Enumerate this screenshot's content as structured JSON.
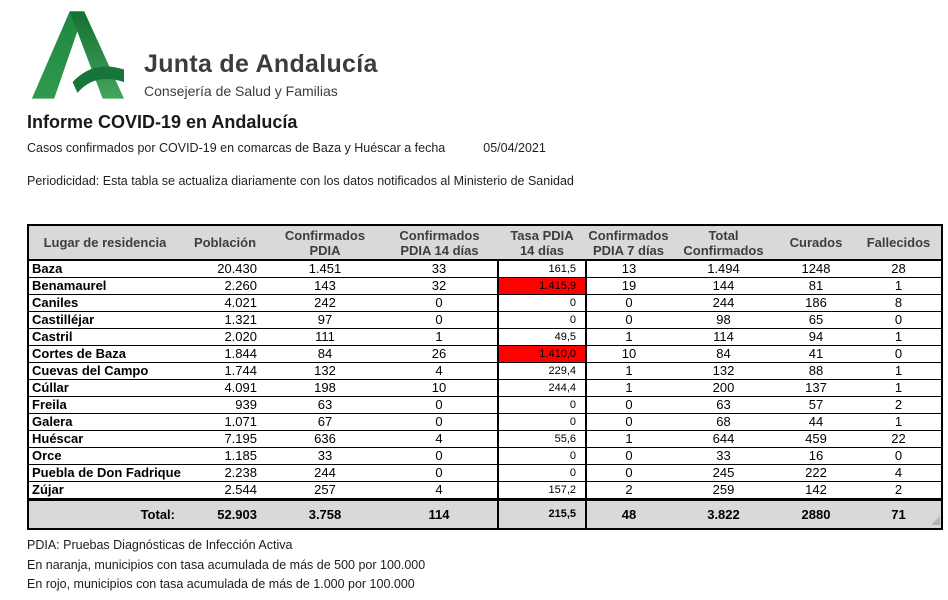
{
  "brand": {
    "name": "Junta de Andalucía",
    "department": "Consejería de Salud y Familias",
    "logo": "junta-de-andalucia-a-logo"
  },
  "report": {
    "title": "Informe COVID-19 en Andalucía",
    "subtitle": "Casos confirmados por COVID-19 en comarcas de Baza y Huéscar a fecha",
    "date": "05/04/2021",
    "periodicity": "Periodicidad: Esta tabla se actualiza diariamente con los datos notificados al Ministerio de Sanidad"
  },
  "colors": {
    "table_header_bg": "#d9d9d9",
    "total_row_bg": "#d9d9d9",
    "highlight_red": "#ff0000",
    "logo_green_light": "#2f9a4f",
    "logo_green_dark": "#156f33"
  },
  "table": {
    "columns": [
      {
        "key": "lugar",
        "label_lines": [
          "Lugar de residencia"
        ]
      },
      {
        "key": "poblacion",
        "label_lines": [
          "Población"
        ]
      },
      {
        "key": "conf_pdia",
        "label_lines": [
          "Confirmados",
          "PDIA"
        ]
      },
      {
        "key": "conf_pdia_14",
        "label_lines": [
          "Confirmados",
          "PDIA 14 días"
        ]
      },
      {
        "key": "tasa_pdia_14",
        "label_lines": [
          "Tasa PDIA",
          "14 días"
        ]
      },
      {
        "key": "conf_pdia_7",
        "label_lines": [
          "Confirmados",
          "PDIA 7 días"
        ]
      },
      {
        "key": "total_conf",
        "label_lines": [
          "Total",
          "Confirmados"
        ]
      },
      {
        "key": "curados",
        "label_lines": [
          "Curados"
        ]
      },
      {
        "key": "fallecidos",
        "label_lines": [
          "Fallecidos"
        ]
      }
    ],
    "rows": [
      {
        "lugar": "Baza",
        "poblacion": "20.430",
        "conf_pdia": "1.451",
        "conf_pdia_14": "33",
        "tasa_pdia_14": "161,5",
        "tasa_highlight": null,
        "conf_pdia_7": "13",
        "total_conf": "1.494",
        "curados": "1248",
        "fallecidos": "28"
      },
      {
        "lugar": "Benamaurel",
        "poblacion": "2.260",
        "conf_pdia": "143",
        "conf_pdia_14": "32",
        "tasa_pdia_14": "1.415,9",
        "tasa_highlight": "red",
        "conf_pdia_7": "19",
        "total_conf": "144",
        "curados": "81",
        "fallecidos": "1"
      },
      {
        "lugar": "Caniles",
        "poblacion": "4.021",
        "conf_pdia": "242",
        "conf_pdia_14": "0",
        "tasa_pdia_14": "0",
        "tasa_highlight": null,
        "conf_pdia_7": "0",
        "total_conf": "244",
        "curados": "186",
        "fallecidos": "8"
      },
      {
        "lugar": "Castilléjar",
        "poblacion": "1.321",
        "conf_pdia": "97",
        "conf_pdia_14": "0",
        "tasa_pdia_14": "0",
        "tasa_highlight": null,
        "conf_pdia_7": "0",
        "total_conf": "98",
        "curados": "65",
        "fallecidos": "0"
      },
      {
        "lugar": "Castril",
        "poblacion": "2.020",
        "conf_pdia": "111",
        "conf_pdia_14": "1",
        "tasa_pdia_14": "49,5",
        "tasa_highlight": null,
        "conf_pdia_7": "1",
        "total_conf": "114",
        "curados": "94",
        "fallecidos": "1"
      },
      {
        "lugar": "Cortes de Baza",
        "poblacion": "1.844",
        "conf_pdia": "84",
        "conf_pdia_14": "26",
        "tasa_pdia_14": "1.410,0",
        "tasa_highlight": "red",
        "conf_pdia_7": "10",
        "total_conf": "84",
        "curados": "41",
        "fallecidos": "0"
      },
      {
        "lugar": "Cuevas del Campo",
        "poblacion": "1.744",
        "conf_pdia": "132",
        "conf_pdia_14": "4",
        "tasa_pdia_14": "229,4",
        "tasa_highlight": null,
        "conf_pdia_7": "1",
        "total_conf": "132",
        "curados": "88",
        "fallecidos": "1"
      },
      {
        "lugar": "Cúllar",
        "poblacion": "4.091",
        "conf_pdia": "198",
        "conf_pdia_14": "10",
        "tasa_pdia_14": "244,4",
        "tasa_highlight": null,
        "conf_pdia_7": "1",
        "total_conf": "200",
        "curados": "137",
        "fallecidos": "1"
      },
      {
        "lugar": "Freila",
        "poblacion": "939",
        "conf_pdia": "63",
        "conf_pdia_14": "0",
        "tasa_pdia_14": "0",
        "tasa_highlight": null,
        "conf_pdia_7": "0",
        "total_conf": "63",
        "curados": "57",
        "fallecidos": "2"
      },
      {
        "lugar": "Galera",
        "poblacion": "1.071",
        "conf_pdia": "67",
        "conf_pdia_14": "0",
        "tasa_pdia_14": "0",
        "tasa_highlight": null,
        "conf_pdia_7": "0",
        "total_conf": "68",
        "curados": "44",
        "fallecidos": "1"
      },
      {
        "lugar": "Huéscar",
        "poblacion": "7.195",
        "conf_pdia": "636",
        "conf_pdia_14": "4",
        "tasa_pdia_14": "55,6",
        "tasa_highlight": null,
        "conf_pdia_7": "1",
        "total_conf": "644",
        "curados": "459",
        "fallecidos": "22"
      },
      {
        "lugar": "Orce",
        "poblacion": "1.185",
        "conf_pdia": "33",
        "conf_pdia_14": "0",
        "tasa_pdia_14": "0",
        "tasa_highlight": null,
        "conf_pdia_7": "0",
        "total_conf": "33",
        "curados": "16",
        "fallecidos": "0"
      },
      {
        "lugar": "Puebla de Don Fadrique",
        "poblacion": "2.238",
        "conf_pdia": "244",
        "conf_pdia_14": "0",
        "tasa_pdia_14": "0",
        "tasa_highlight": null,
        "conf_pdia_7": "0",
        "total_conf": "245",
        "curados": "222",
        "fallecidos": "4"
      },
      {
        "lugar": "Zújar",
        "poblacion": "2.544",
        "conf_pdia": "257",
        "conf_pdia_14": "4",
        "tasa_pdia_14": "157,2",
        "tasa_highlight": null,
        "conf_pdia_7": "2",
        "total_conf": "259",
        "curados": "142",
        "fallecidos": "2"
      }
    ],
    "total_row": {
      "lugar": "Total:",
      "poblacion": "52.903",
      "conf_pdia": "3.758",
      "conf_pdia_14": "114",
      "tasa_pdia_14": "215,5",
      "conf_pdia_7": "48",
      "total_conf": "3.822",
      "curados": "2880",
      "fallecidos": "71"
    }
  },
  "footnotes": [
    "PDIA: Pruebas Diagnósticas de Infección Activa",
    "En  naranja, municipios con tasa acumulada de más de 500 por 100.000",
    "En rojo, municipios con tasa acumulada de más de 1.000 por 100.000"
  ]
}
